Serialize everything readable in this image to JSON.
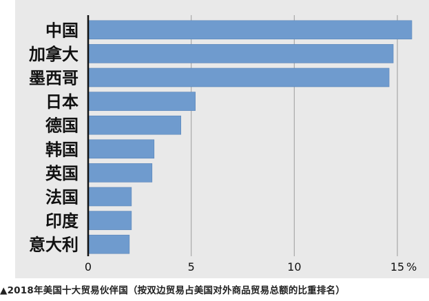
{
  "chart_data": {
    "type": "bar",
    "orientation": "horizontal",
    "categories": [
      "中国",
      "加拿大",
      "墨西哥",
      "日本",
      "德国",
      "韩国",
      "英国",
      "法国",
      "印度",
      "意大利"
    ],
    "values": [
      15.7,
      14.8,
      14.6,
      5.2,
      4.5,
      3.2,
      3.1,
      2.1,
      2.1,
      2.0
    ],
    "xlim": [
      0,
      16
    ],
    "xticks": [
      0,
      5,
      10,
      15
    ],
    "xtick_labels": [
      "0",
      "5",
      "10",
      "15"
    ],
    "unit": "%",
    "grid": true,
    "bar_color": "#6f9bce",
    "background_color": "#e9e9e9"
  },
  "caption": "▲2018年美国十大贸易伙伴国（按双边贸易占美国对外商品贸易总额的比重排名）"
}
